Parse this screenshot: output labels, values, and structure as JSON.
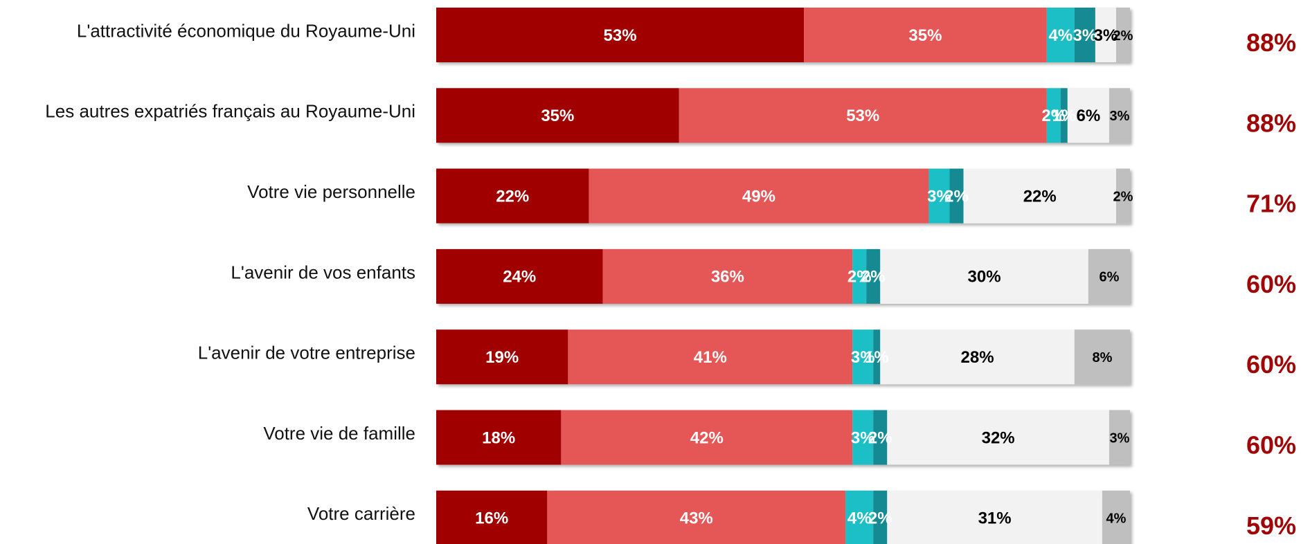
{
  "chart_data": {
    "type": "bar",
    "orientation": "horizontal",
    "stacked": true,
    "categories": [
      "L'attractivité économique du Royaume-Uni",
      "Les autres expatriés français au Royaume-Uni",
      "Votre vie personnelle",
      "L'avenir de vos enfants",
      "L'avenir de votre entreprise",
      "Votre vie de famille",
      "Votre carrière"
    ],
    "xlim": [
      0,
      100
    ],
    "series": [
      {
        "color": "#a00606",
        "label_color": "#ffffff",
        "values": [
          53,
          35,
          22,
          24,
          19,
          18,
          16
        ],
        "value_labels": [
          "53%",
          "35%",
          "22%",
          "24%",
          "19%",
          "18%",
          "16%"
        ]
      },
      {
        "color": "#e55757",
        "label_color": "#ffffff",
        "values": [
          35,
          53,
          49,
          36,
          41,
          42,
          43
        ],
        "value_labels": [
          "35%",
          "53%",
          "49%",
          "36%",
          "41%",
          "42%",
          "43%"
        ]
      },
      {
        "color": "#1fbfc6",
        "label_color": "#ffffff",
        "values": [
          4,
          2,
          3,
          2,
          3,
          3,
          4
        ],
        "value_labels": [
          "4%",
          "2%",
          "3%",
          "2%",
          "3%",
          "3%",
          "4%"
        ]
      },
      {
        "color": "#168a92",
        "label_color": "#ffffff",
        "values": [
          3,
          1,
          2,
          2,
          1,
          2,
          2
        ],
        "value_labels": [
          "3%",
          "1%",
          "2%",
          "2%",
          "1%",
          "2%",
          "2%"
        ]
      },
      {
        "color": "#f2f2f2",
        "label_color": "#000000",
        "values": [
          3,
          6,
          22,
          30,
          28,
          32,
          31
        ],
        "value_labels": [
          "3%",
          "6%",
          "22%",
          "30%",
          "28%",
          "32%",
          "31%"
        ]
      },
      {
        "color": "#bfbfbf",
        "label_color": "#000000",
        "values": [
          2,
          3,
          2,
          6,
          8,
          3,
          4
        ],
        "value_labels": [
          "2%",
          "3%",
          "2%",
          "6%",
          "8%",
          "3%",
          "4%"
        ]
      }
    ],
    "totals": {
      "color": "#a00606",
      "values": [
        88,
        88,
        71,
        60,
        60,
        60,
        59
      ],
      "value_labels": [
        "88%",
        "88%",
        "71%",
        "60%",
        "60%",
        "60%",
        "59%"
      ]
    }
  }
}
